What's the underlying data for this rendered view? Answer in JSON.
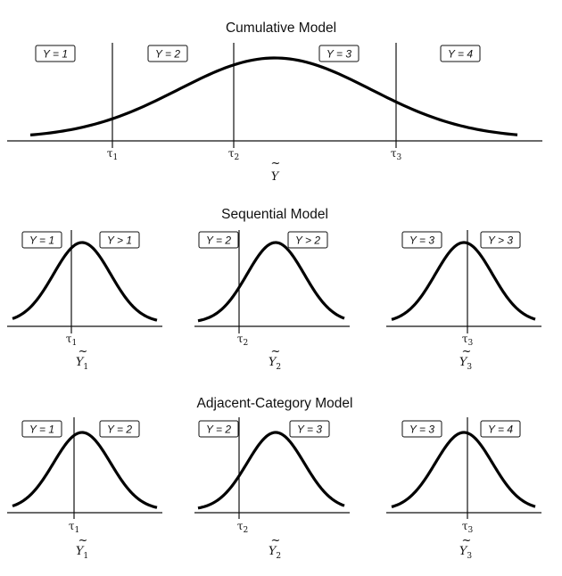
{
  "cumulative": {
    "title": "Cumulative Model",
    "categories": [
      "Y = 1",
      "Y = 2",
      "Y = 3",
      "Y = 4"
    ],
    "thresholds": [
      {
        "symbol": "τ",
        "sub": "1"
      },
      {
        "symbol": "τ",
        "sub": "2"
      },
      {
        "symbol": "τ",
        "sub": "3"
      }
    ],
    "x_label": {
      "text": "Y",
      "tilde": "~",
      "sub": ""
    }
  },
  "sequential": {
    "title": "Sequential Model",
    "panels": [
      {
        "left": "Y = 1",
        "right": "Y > 1",
        "tau": {
          "symbol": "τ",
          "sub": "1"
        },
        "x_label": {
          "text": "Y",
          "tilde": "~",
          "sub": "1"
        }
      },
      {
        "left": "Y = 2",
        "right": "Y > 2",
        "tau": {
          "symbol": "τ",
          "sub": "2"
        },
        "x_label": {
          "text": "Y",
          "tilde": "~",
          "sub": "2"
        }
      },
      {
        "left": "Y = 3",
        "right": "Y > 3",
        "tau": {
          "symbol": "τ",
          "sub": "3"
        },
        "x_label": {
          "text": "Y",
          "tilde": "~",
          "sub": "3"
        }
      }
    ]
  },
  "adjacent": {
    "title": "Adjacent-Category Model",
    "panels": [
      {
        "left": "Y = 1",
        "right": "Y = 2",
        "tau": {
          "symbol": "τ",
          "sub": "1"
        },
        "x_label": {
          "text": "Y",
          "tilde": "~",
          "sub": "1"
        }
      },
      {
        "left": "Y = 2",
        "right": "Y = 3",
        "tau": {
          "symbol": "τ",
          "sub": "2"
        },
        "x_label": {
          "text": "Y",
          "tilde": "~",
          "sub": "2"
        }
      },
      {
        "left": "Y = 3",
        "right": "Y = 4",
        "tau": {
          "symbol": "τ",
          "sub": "3"
        },
        "x_label": {
          "text": "Y",
          "tilde": "~",
          "sub": "3"
        }
      }
    ]
  }
}
